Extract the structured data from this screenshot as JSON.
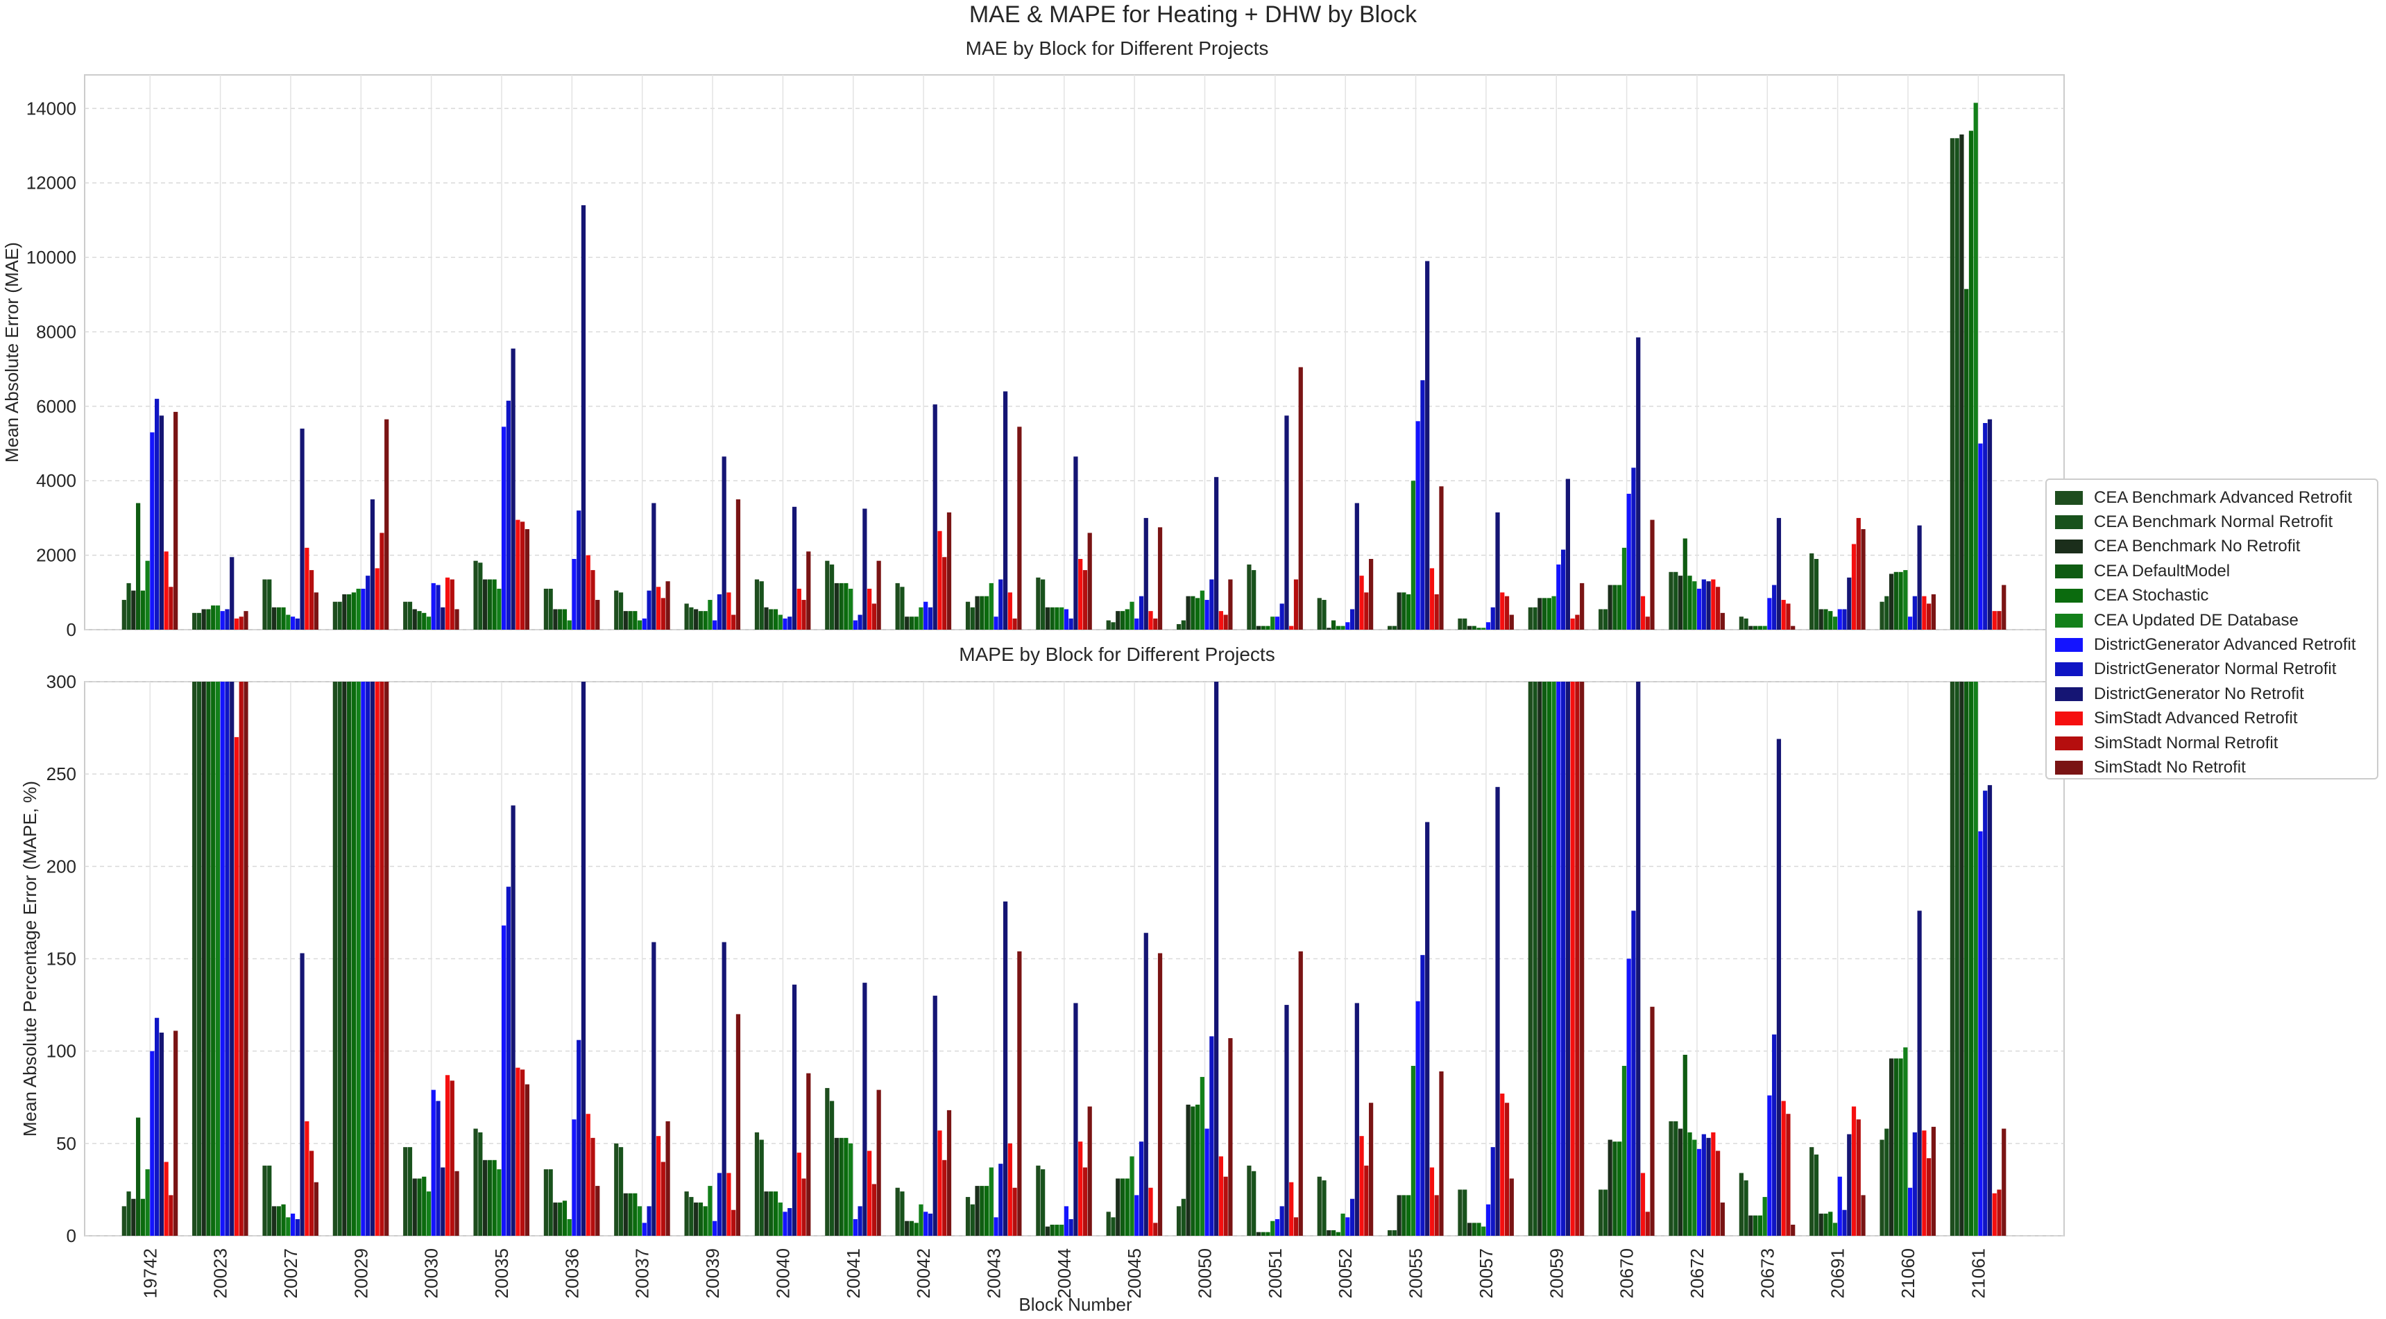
{
  "title": "MAE & MAPE for Heating + DHW by Block",
  "legend": [
    "CEA Benchmark Advanced Retrofit",
    "CEA Benchmark Normal Retrofit",
    "CEA Benchmark No Retrofit",
    "CEA DefaultModel",
    "CEA Stochastic",
    "CEA Updated DE Database",
    "DistrictGenerator Advanced Retrofit",
    "DistrictGenerator Normal Retrofit",
    "DistrictGenerator No Retrofit",
    "SimStadt Advanced Retrofit",
    "SimStadt Normal Retrofit",
    "SimStadt No Retrofit"
  ],
  "colors": [
    "#1e4d1e",
    "#18521c",
    "#1b2e1b",
    "#0f5c12",
    "#0b6b0e",
    "#13801a",
    "#1414ff",
    "#0f15c4",
    "#151574",
    "#f50f0f",
    "#b50e0e",
    "#7a1414"
  ],
  "chart_data": [
    {
      "type": "bar",
      "title": "MAE by Block for Different Projects",
      "xlabel": "Block Number",
      "ylabel": "Mean Absolute Error (MAE)",
      "ylim": [
        0,
        14900
      ],
      "yticks": [
        0,
        2000,
        4000,
        6000,
        8000,
        10000,
        12000,
        14000
      ],
      "grid": true,
      "legend_position": "right",
      "categories": [
        "19742",
        "20023",
        "20027",
        "20029",
        "20030",
        "20035",
        "20036",
        "20037",
        "20039",
        "20040",
        "20041",
        "20042",
        "20043",
        "20044",
        "20045",
        "20050",
        "20051",
        "20052",
        "20055",
        "20057",
        "20059",
        "20670",
        "20672",
        "20673",
        "20691",
        "21060",
        "21061"
      ],
      "series": [
        {
          "name": "CEA Benchmark Advanced Retrofit",
          "values": [
            800,
            450,
            1350,
            750,
            750,
            1850,
            1100,
            1050,
            700,
            1350,
            1850,
            1250,
            750,
            1400,
            250,
            150,
            1750,
            850,
            100,
            300,
            600,
            550,
            1550,
            350,
            2050,
            750,
            13200
          ]
        },
        {
          "name": "CEA Benchmark Normal Retrofit",
          "values": [
            1250,
            450,
            1350,
            750,
            750,
            1800,
            1100,
            1000,
            600,
            1300,
            1750,
            1150,
            600,
            1350,
            200,
            250,
            1600,
            800,
            100,
            300,
            600,
            550,
            1550,
            300,
            1900,
            900,
            13200
          ]
        },
        {
          "name": "CEA Benchmark No Retrofit",
          "values": [
            1050,
            550,
            600,
            950,
            550,
            1350,
            550,
            500,
            550,
            600,
            1250,
            350,
            900,
            600,
            500,
            900,
            100,
            50,
            1000,
            100,
            850,
            1200,
            1450,
            100,
            550,
            1500,
            13300
          ]
        },
        {
          "name": "CEA DefaultModel",
          "values": [
            3400,
            550,
            600,
            950,
            500,
            1350,
            550,
            500,
            500,
            550,
            1250,
            350,
            900,
            600,
            500,
            900,
            100,
            250,
            1000,
            100,
            850,
            1200,
            2450,
            100,
            550,
            1550,
            9150
          ]
        },
        {
          "name": "CEA Stochastic",
          "values": [
            1050,
            650,
            600,
            1000,
            450,
            1350,
            550,
            500,
            500,
            550,
            1250,
            350,
            900,
            600,
            550,
            850,
            100,
            100,
            950,
            50,
            850,
            1200,
            1450,
            100,
            500,
            1550,
            13400
          ]
        },
        {
          "name": "CEA Updated DE Database",
          "values": [
            1850,
            650,
            400,
            1100,
            350,
            1100,
            250,
            250,
            800,
            400,
            1100,
            600,
            1250,
            600,
            750,
            1050,
            350,
            100,
            4000,
            50,
            900,
            2200,
            1300,
            100,
            350,
            1600,
            14150
          ]
        },
        {
          "name": "DistrictGenerator Advanced Retrofit",
          "values": [
            5300,
            500,
            350,
            1100,
            1250,
            5450,
            1900,
            300,
            250,
            300,
            250,
            750,
            350,
            550,
            300,
            800,
            350,
            200,
            5600,
            200,
            1750,
            3650,
            1100,
            850,
            550,
            350,
            5000
          ]
        },
        {
          "name": "DistrictGenerator Normal Retrofit",
          "values": [
            6200,
            550,
            300,
            1450,
            1200,
            6150,
            3200,
            1050,
            950,
            350,
            400,
            600,
            1350,
            300,
            900,
            1350,
            700,
            550,
            6700,
            600,
            2150,
            4350,
            1350,
            1200,
            550,
            900,
            5550
          ]
        },
        {
          "name": "DistrictGenerator No Retrofit",
          "values": [
            5750,
            1950,
            5400,
            3500,
            600,
            7550,
            11400,
            3400,
            4650,
            3300,
            3250,
            6050,
            6400,
            4650,
            3000,
            4100,
            5750,
            3400,
            9900,
            3150,
            4050,
            7850,
            1300,
            3000,
            1400,
            2800,
            5650
          ]
        },
        {
          "name": "SimStadt Advanced Retrofit",
          "values": [
            2100,
            300,
            2200,
            1650,
            1400,
            2950,
            2000,
            1150,
            1000,
            1100,
            1100,
            2650,
            1000,
            1900,
            500,
            500,
            100,
            1450,
            1650,
            1000,
            300,
            900,
            1350,
            800,
            2300,
            900,
            500
          ]
        },
        {
          "name": "SimStadt Normal Retrofit",
          "values": [
            1150,
            350,
            1600,
            2600,
            1350,
            2900,
            1600,
            850,
            400,
            800,
            700,
            1950,
            300,
            1600,
            300,
            400,
            1350,
            1000,
            950,
            900,
            400,
            350,
            1150,
            700,
            3000,
            700,
            500
          ]
        },
        {
          "name": "SimStadt No Retrofit",
          "values": [
            5850,
            500,
            1000,
            5650,
            550,
            2700,
            800,
            1300,
            3500,
            2100,
            1850,
            3150,
            5450,
            2600,
            2750,
            1350,
            7050,
            1900,
            3850,
            400,
            1250,
            2950,
            450,
            100,
            2700,
            950,
            1200
          ]
        }
      ]
    },
    {
      "type": "bar",
      "title": "MAPE by Block for Different Projects",
      "xlabel": "Block Number",
      "ylabel": "Mean Absolute Percentage Error (MAPE, %)",
      "ylim": [
        0,
        300
      ],
      "yticks": [
        0,
        50,
        100,
        150,
        200,
        250,
        300
      ],
      "grid": true,
      "categories": [
        "19742",
        "20023",
        "20027",
        "20029",
        "20030",
        "20035",
        "20036",
        "20037",
        "20039",
        "20040",
        "20041",
        "20042",
        "20043",
        "20044",
        "20045",
        "20050",
        "20051",
        "20052",
        "20055",
        "20057",
        "20059",
        "20670",
        "20672",
        "20673",
        "20691",
        "21060",
        "21061"
      ],
      "series": [
        {
          "name": "CEA Benchmark Advanced Retrofit",
          "values": [
            16,
            300,
            38,
            300,
            48,
            58,
            36,
            50,
            24,
            56,
            80,
            26,
            21,
            38,
            13,
            16,
            38,
            32,
            3,
            25,
            300,
            25,
            62,
            34,
            48,
            52,
            300
          ]
        },
        {
          "name": "CEA Benchmark Normal Retrofit",
          "values": [
            24,
            300,
            38,
            300,
            48,
            56,
            36,
            48,
            21,
            52,
            73,
            24,
            17,
            36,
            10,
            20,
            35,
            30,
            3,
            25,
            300,
            25,
            62,
            30,
            44,
            58,
            300
          ]
        },
        {
          "name": "CEA Benchmark No Retrofit",
          "values": [
            20,
            300,
            16,
            300,
            31,
            41,
            18,
            23,
            18,
            24,
            53,
            8,
            27,
            5,
            31,
            71,
            2,
            3,
            22,
            7,
            300,
            52,
            58,
            11,
            12,
            96,
            300
          ]
        },
        {
          "name": "CEA DefaultModel",
          "values": [
            64,
            300,
            16,
            300,
            31,
            41,
            18,
            23,
            18,
            24,
            53,
            8,
            27,
            6,
            31,
            70,
            2,
            3,
            22,
            7,
            300,
            51,
            98,
            11,
            12,
            96,
            300
          ]
        },
        {
          "name": "CEA Stochastic",
          "values": [
            20,
            300,
            17,
            300,
            32,
            41,
            19,
            23,
            16,
            24,
            53,
            7,
            27,
            6,
            31,
            71,
            2,
            2,
            22,
            7,
            300,
            51,
            56,
            11,
            13,
            96,
            300
          ]
        },
        {
          "name": "CEA Updated DE Database",
          "values": [
            36,
            300,
            10,
            300,
            24,
            36,
            9,
            16,
            27,
            18,
            50,
            17,
            37,
            6,
            43,
            86,
            8,
            12,
            92,
            5,
            300,
            92,
            52,
            21,
            7,
            102,
            300
          ]
        },
        {
          "name": "DistrictGenerator Advanced Retrofit",
          "values": [
            100,
            300,
            12,
            300,
            79,
            168,
            63,
            7,
            8,
            13,
            9,
            13,
            10,
            16,
            22,
            58,
            9,
            10,
            127,
            17,
            300,
            150,
            47,
            76,
            32,
            26,
            219
          ]
        },
        {
          "name": "DistrictGenerator Normal Retrofit",
          "values": [
            118,
            300,
            9,
            300,
            73,
            189,
            106,
            16,
            34,
            15,
            16,
            12,
            39,
            9,
            51,
            108,
            16,
            20,
            152,
            48,
            300,
            176,
            55,
            109,
            14,
            56,
            241
          ]
        },
        {
          "name": "DistrictGenerator No Retrofit",
          "values": [
            110,
            300,
            153,
            300,
            37,
            233,
            300,
            159,
            159,
            136,
            137,
            130,
            181,
            126,
            164,
            300,
            125,
            126,
            224,
            243,
            300,
            300,
            53,
            269,
            55,
            176,
            244
          ]
        },
        {
          "name": "SimStadt Advanced Retrofit",
          "values": [
            40,
            270,
            62,
            300,
            87,
            91,
            66,
            54,
            34,
            45,
            46,
            57,
            50,
            51,
            26,
            43,
            29,
            54,
            37,
            77,
            300,
            34,
            56,
            73,
            70,
            57,
            23
          ]
        },
        {
          "name": "SimStadt Normal Retrofit",
          "values": [
            22,
            300,
            46,
            300,
            84,
            90,
            53,
            40,
            14,
            31,
            28,
            41,
            26,
            37,
            7,
            32,
            10,
            38,
            22,
            72,
            300,
            13,
            46,
            66,
            63,
            42,
            25
          ]
        },
        {
          "name": "SimStadt No Retrofit",
          "values": [
            111,
            300,
            29,
            300,
            35,
            82,
            27,
            62,
            120,
            88,
            79,
            68,
            154,
            70,
            153,
            107,
            154,
            72,
            89,
            31,
            300,
            124,
            18,
            6,
            22,
            59,
            58
          ]
        }
      ]
    }
  ]
}
